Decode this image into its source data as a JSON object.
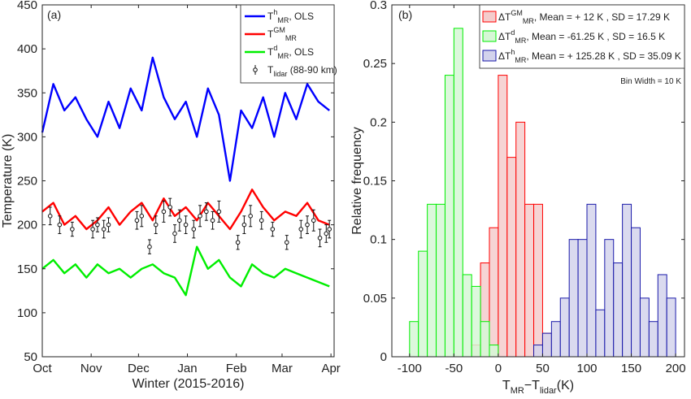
{
  "chart_data": [
    {
      "type": "line",
      "panel_label": "(a)",
      "xlabel": "Winter (2015-2016)",
      "ylabel": "Temperature (K)",
      "ylim": [
        50,
        450
      ],
      "yticks": [
        50,
        100,
        150,
        200,
        250,
        300,
        350,
        400,
        450
      ],
      "x_categories": [
        "Oct",
        "Nov",
        "Dec",
        "Jan",
        "Feb",
        "Mar",
        "Apr"
      ],
      "legend_position": "top-right",
      "series": [
        {
          "name": "T_MR^h, OLS",
          "legend": {
            "base": "T",
            "sup": "h",
            "sub": "MR",
            "suffix": ", OLS"
          },
          "color": "#0000ff",
          "x": [
            "2015-10-01",
            "2015-10-08",
            "2015-10-15",
            "2015-10-22",
            "2015-10-29",
            "2015-11-05",
            "2015-11-12",
            "2015-11-19",
            "2015-11-26",
            "2015-12-03",
            "2015-12-10",
            "2015-12-17",
            "2015-12-24",
            "2015-12-31",
            "2016-01-07",
            "2016-01-14",
            "2016-01-21",
            "2016-01-28",
            "2016-02-04",
            "2016-02-11",
            "2016-02-18",
            "2016-02-25",
            "2016-03-03",
            "2016-03-10",
            "2016-03-17",
            "2016-03-24",
            "2016-03-31"
          ],
          "values": [
            305,
            360,
            330,
            345,
            320,
            300,
            340,
            310,
            355,
            330,
            390,
            345,
            320,
            340,
            300,
            355,
            325,
            250,
            330,
            310,
            345,
            300,
            350,
            320,
            360,
            340,
            330
          ]
        },
        {
          "name": "T_MR^GM",
          "legend": {
            "base": "T",
            "sup": "GM",
            "sub": "MR",
            "suffix": ""
          },
          "color": "#ff0000",
          "x": [
            "2015-10-01",
            "2015-10-08",
            "2015-10-15",
            "2015-10-22",
            "2015-10-29",
            "2015-11-05",
            "2015-11-12",
            "2015-11-19",
            "2015-11-26",
            "2015-12-03",
            "2015-12-10",
            "2015-12-17",
            "2015-12-24",
            "2015-12-31",
            "2016-01-07",
            "2016-01-14",
            "2016-01-21",
            "2016-01-28",
            "2016-02-04",
            "2016-02-11",
            "2016-02-18",
            "2016-02-25",
            "2016-03-03",
            "2016-03-10",
            "2016-03-17",
            "2016-03-24",
            "2016-03-31"
          ],
          "values": [
            215,
            225,
            200,
            210,
            195,
            205,
            220,
            200,
            215,
            225,
            205,
            230,
            210,
            220,
            205,
            225,
            210,
            195,
            215,
            240,
            220,
            205,
            215,
            210,
            225,
            205,
            200
          ]
        },
        {
          "name": "T_MR^d, OLS",
          "legend": {
            "base": "T",
            "sup": "d",
            "sub": "MR",
            "suffix": ", OLS"
          },
          "color": "#00ee00",
          "x": [
            "2015-10-01",
            "2015-10-08",
            "2015-10-15",
            "2015-10-22",
            "2015-10-29",
            "2015-11-05",
            "2015-11-12",
            "2015-11-19",
            "2015-11-26",
            "2015-12-03",
            "2015-12-10",
            "2015-12-17",
            "2015-12-24",
            "2015-12-31",
            "2016-01-07",
            "2016-01-14",
            "2016-01-21",
            "2016-01-28",
            "2016-02-04",
            "2016-02-11",
            "2016-02-18",
            "2016-02-25",
            "2016-03-03",
            "2016-03-10",
            "2016-03-17",
            "2016-03-24",
            "2016-03-31"
          ],
          "values": [
            150,
            160,
            145,
            155,
            140,
            155,
            145,
            150,
            140,
            150,
            155,
            145,
            140,
            120,
            175,
            150,
            160,
            140,
            130,
            155,
            145,
            140,
            150,
            145,
            140,
            135,
            130
          ]
        },
        {
          "name": "T_lidar (88-90 km)",
          "legend": {
            "base": "T",
            "sup": "",
            "sub": "lidar",
            "suffix": " (88-90 km)"
          },
          "color": "#111111",
          "marker": "circle-errorbar",
          "x": [
            "2015-10-06",
            "2015-10-12",
            "2015-10-20",
            "2015-11-02",
            "2015-11-05",
            "2015-11-09",
            "2015-11-12",
            "2015-11-30",
            "2015-12-03",
            "2015-12-08",
            "2015-12-12",
            "2015-12-17",
            "2015-12-21",
            "2015-12-24",
            "2015-12-27",
            "2015-12-31",
            "2016-01-05",
            "2016-01-09",
            "2016-01-13",
            "2016-01-17",
            "2016-01-21",
            "2016-02-02",
            "2016-02-06",
            "2016-02-10",
            "2016-02-17",
            "2016-02-24",
            "2016-03-04",
            "2016-03-13",
            "2016-03-17",
            "2016-03-21",
            "2016-03-25",
            "2016-03-29",
            "2016-03-31"
          ],
          "values": [
            210,
            200,
            195,
            195,
            200,
            195,
            200,
            205,
            210,
            175,
            200,
            215,
            220,
            190,
            205,
            200,
            195,
            210,
            215,
            205,
            215,
            180,
            200,
            210,
            205,
            195,
            180,
            195,
            200,
            205,
            185,
            190,
            195
          ],
          "errors": [
            10,
            10,
            8,
            10,
            8,
            10,
            8,
            10,
            12,
            8,
            10,
            12,
            10,
            10,
            12,
            10,
            10,
            12,
            10,
            10,
            12,
            8,
            10,
            12,
            10,
            8,
            8,
            10,
            10,
            12,
            10,
            10,
            10
          ]
        }
      ]
    },
    {
      "type": "histogram",
      "panel_label": "(b)",
      "xlabel": {
        "base": "T",
        "sub1": "MR",
        "mid": "−T",
        "sub2": "lidar",
        "suffix": "(K)"
      },
      "ylabel": "Relative frequency",
      "xlim": [
        -120,
        210
      ],
      "xticks": [
        -100,
        -50,
        0,
        50,
        100,
        150,
        200
      ],
      "ylim": [
        0,
        0.3
      ],
      "yticks": [
        "0",
        "0.05",
        "0.1",
        "0.15",
        "0.2",
        "0.25",
        "0.3"
      ],
      "bin_width": 10,
      "annotation": "Bin Width = 10 K",
      "legend_position": "top-right",
      "series": [
        {
          "name": "ΔT_MR^GM",
          "legend": {
            "base": "ΔT",
            "sup": "GM",
            "sub": "MR",
            "stats": ", Mean = + 12 K , SD = 17.29 K"
          },
          "color": "#ff0000",
          "fill": "#f4cccc",
          "bin_starts": [
            -40,
            -30,
            -20,
            -10,
            0,
            10,
            20,
            30,
            40,
            50
          ],
          "values": [
            0.0,
            0.01,
            0.08,
            0.11,
            0.24,
            0.17,
            0.2,
            0.13,
            0.13,
            0.02
          ]
        },
        {
          "name": "ΔT_MR^d",
          "legend": {
            "base": "ΔT",
            "sup": "d",
            "sub": "MR",
            "stats": ", Mean = -61.25 K , SD = 16.5 K"
          },
          "color": "#00ee00",
          "fill": "#d6f7d6",
          "bin_starts": [
            -110,
            -100,
            -90,
            -80,
            -70,
            -60,
            -50,
            -40,
            -30,
            -20,
            -10
          ],
          "values": [
            0.0,
            0.03,
            0.09,
            0.13,
            0.13,
            0.24,
            0.28,
            0.07,
            0.06,
            0.03,
            0.01
          ]
        },
        {
          "name": "ΔT_MR^h",
          "legend": {
            "base": "ΔT",
            "sup": "h",
            "sub": "MR",
            "stats": ", Mean = + 125.28 K , SD = 35.09 K"
          },
          "color": "#1a1aaa",
          "fill": "#d3d3ec",
          "bin_starts": [
            40,
            50,
            60,
            70,
            80,
            90,
            100,
            110,
            120,
            130,
            140,
            150,
            160,
            170,
            180,
            190
          ],
          "values": [
            0.01,
            0.02,
            0.03,
            0.05,
            0.1,
            0.1,
            0.13,
            0.04,
            0.1,
            0.08,
            0.13,
            0.11,
            0.05,
            0.03,
            0.07,
            0.05
          ]
        }
      ]
    }
  ]
}
